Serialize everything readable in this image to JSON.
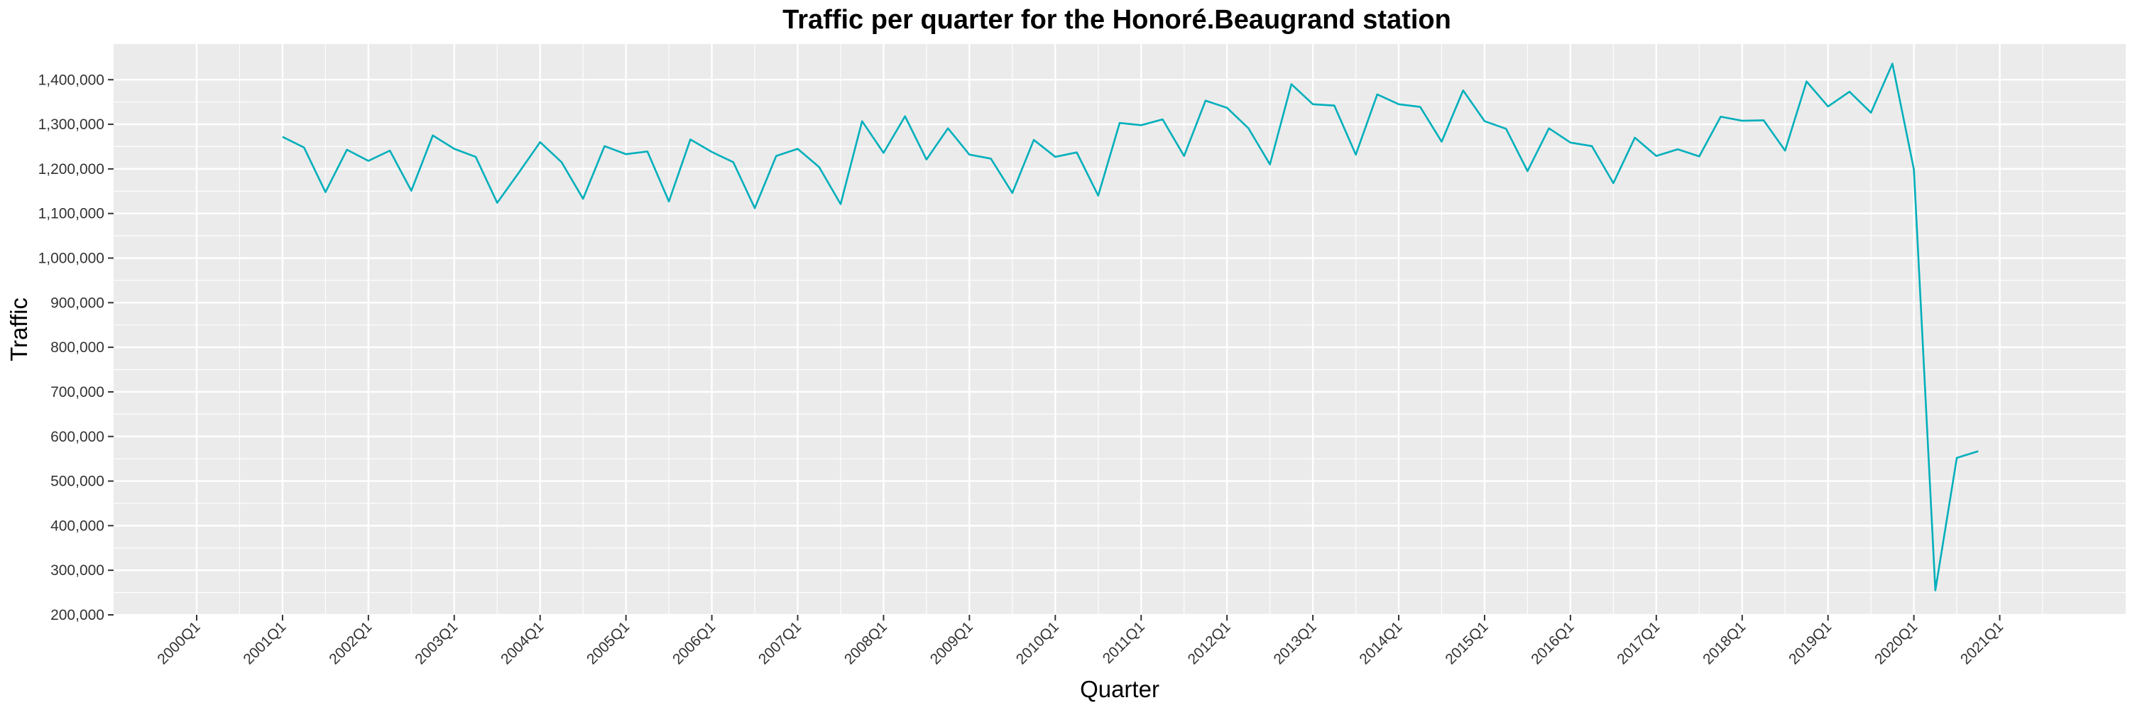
{
  "chart_data": {
    "type": "line",
    "title": "Traffic per quarter for the Honoré.Beaugrand station",
    "xlabel": "Quarter",
    "ylabel": "Traffic",
    "ylim": [
      200000,
      1480000
    ],
    "y_ticks": [
      200000,
      300000,
      400000,
      500000,
      600000,
      700000,
      800000,
      900000,
      1000000,
      1100000,
      1200000,
      1300000,
      1400000
    ],
    "y_tick_labels": [
      "200,000",
      "300,000",
      "400,000",
      "500,000",
      "600,000",
      "700,000",
      "800,000",
      "900,000",
      "1,000,000",
      "1,100,000",
      "1,200,000",
      "1,300,000",
      "1,400,000"
    ],
    "x_tick_labels": [
      "2000Q1",
      "2001Q1",
      "2002Q1",
      "2003Q1",
      "2004Q1",
      "2005Q1",
      "2006Q1",
      "2007Q1",
      "2008Q1",
      "2009Q1",
      "2010Q1",
      "2011Q1",
      "2012Q1",
      "2013Q1",
      "2014Q1",
      "2015Q1",
      "2016Q1",
      "2017Q1",
      "2018Q1",
      "2019Q1",
      "2020Q1",
      "2021Q1"
    ],
    "x_start": "2000Q1",
    "x_end": "2021Q3",
    "grid": true,
    "line_color": "#00AFBB",
    "series": [
      {
        "x": [
          "2001Q1",
          "2001Q2",
          "2001Q3",
          "2001Q4",
          "2002Q1",
          "2002Q2",
          "2002Q3",
          "2002Q4",
          "2003Q1",
          "2003Q2",
          "2003Q3",
          "2003Q4",
          "2004Q1",
          "2004Q2",
          "2004Q3",
          "2004Q4",
          "2005Q1",
          "2005Q2",
          "2005Q3",
          "2005Q4",
          "2006Q1",
          "2006Q2",
          "2006Q3",
          "2006Q4",
          "2007Q1",
          "2007Q2",
          "2007Q3",
          "2007Q4",
          "2008Q1",
          "2008Q2",
          "2008Q3",
          "2008Q4",
          "2009Q1",
          "2009Q2",
          "2009Q3",
          "2009Q4",
          "2010Q1",
          "2010Q2",
          "2010Q3",
          "2010Q4",
          "2011Q1",
          "2011Q2",
          "2011Q3",
          "2011Q4",
          "2012Q1",
          "2012Q2",
          "2012Q3",
          "2012Q4",
          "2013Q1",
          "2013Q2",
          "2013Q3",
          "2013Q4",
          "2014Q1",
          "2014Q2",
          "2014Q3",
          "2014Q4",
          "2015Q1",
          "2015Q2",
          "2015Q3",
          "2015Q4",
          "2016Q1",
          "2016Q2",
          "2016Q3",
          "2016Q4",
          "2017Q1",
          "2017Q2",
          "2017Q3",
          "2017Q4",
          "2018Q1",
          "2018Q2",
          "2018Q3",
          "2018Q4",
          "2019Q1",
          "2019Q2",
          "2019Q3",
          "2019Q4",
          "2020Q1",
          "2020Q2",
          "2020Q3",
          "2020Q4"
        ],
        "values": [
          1272000,
          1248000,
          1148000,
          1243000,
          1218000,
          1241000,
          1151000,
          1275000,
          1245000,
          1227000,
          1124000,
          1191000,
          1260000,
          1215000,
          1133000,
          1251000,
          1233000,
          1239000,
          1127000,
          1266000,
          1238000,
          1215000,
          1112000,
          1229000,
          1245000,
          1204000,
          1121000,
          1307000,
          1236000,
          1318000,
          1221000,
          1291000,
          1232000,
          1223000,
          1146000,
          1265000,
          1227000,
          1237000,
          1140000,
          1303000,
          1298000,
          1311000,
          1229000,
          1353000,
          1337000,
          1291000,
          1210000,
          1390000,
          1345000,
          1342000,
          1232000,
          1367000,
          1345000,
          1339000,
          1261000,
          1376000,
          1307000,
          1290000,
          1195000,
          1291000,
          1259000,
          1251000,
          1168000,
          1270000,
          1229000,
          1244000,
          1228000,
          1317000,
          1308000,
          1309000,
          1241000,
          1396000,
          1340000,
          1373000,
          1326000,
          1436000,
          1199000,
          255000,
          552000,
          567000
        ]
      }
    ]
  }
}
